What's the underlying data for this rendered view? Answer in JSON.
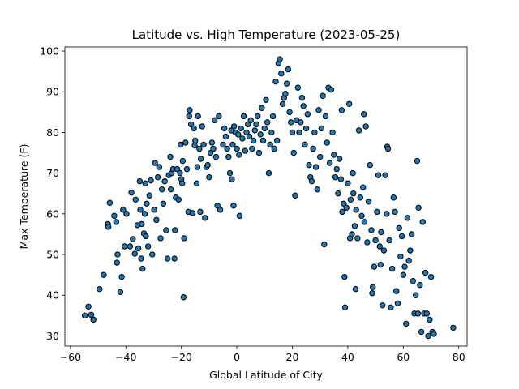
{
  "chart_data": {
    "type": "scatter",
    "title": "Latitude vs. High Temperature (2023-05-25)",
    "xlabel": "Global Latitude of City",
    "ylabel": "Max Temperature (F)",
    "xlim": [
      -62,
      83
    ],
    "ylim": [
      27.5,
      101
    ],
    "xticks": [
      -60,
      -40,
      -20,
      0,
      20,
      40,
      60,
      80
    ],
    "yticks": [
      30,
      40,
      50,
      60,
      70,
      80,
      90,
      100
    ],
    "grid": false,
    "legend": "none",
    "colors": {
      "marker_fill": "#1f77b4",
      "marker_edge": "#000000"
    },
    "points": [
      [
        -54.8,
        35.0
      ],
      [
        -53.5,
        37.2
      ],
      [
        -52.5,
        35.2
      ],
      [
        -51.7,
        34.0
      ],
      [
        -49.5,
        41.5
      ],
      [
        -48.0,
        45.0
      ],
      [
        -46.5,
        57.5
      ],
      [
        -46.3,
        56.8
      ],
      [
        -45.8,
        62.7
      ],
      [
        -44.2,
        59.5
      ],
      [
        -43.5,
        58.0
      ],
      [
        -43.2,
        48.0
      ],
      [
        -43.0,
        50.0
      ],
      [
        -42.0,
        40.8
      ],
      [
        -41.5,
        44.5
      ],
      [
        -41.0,
        61.0
      ],
      [
        -40.5,
        52.0
      ],
      [
        -39.8,
        60.0
      ],
      [
        -38.5,
        52.0
      ],
      [
        -38.0,
        65.2
      ],
      [
        -37.5,
        53.8
      ],
      [
        -36.8,
        50.2
      ],
      [
        -36.5,
        63.5
      ],
      [
        -35.8,
        57.2
      ],
      [
        -35.5,
        51.5
      ],
      [
        -35.0,
        68.0
      ],
      [
        -34.8,
        61.0
      ],
      [
        -34.5,
        49.0
      ],
      [
        -34.3,
        57.5
      ],
      [
        -34.0,
        46.5
      ],
      [
        -33.5,
        55.2
      ],
      [
        -33.2,
        60.0
      ],
      [
        -33.0,
        67.5
      ],
      [
        -32.8,
        54.5
      ],
      [
        -32.5,
        62.5
      ],
      [
        -32.0,
        52.0
      ],
      [
        -31.5,
        64.5
      ],
      [
        -31.0,
        68.2
      ],
      [
        -30.5,
        50.0
      ],
      [
        -29.8,
        61.0
      ],
      [
        -29.5,
        72.5
      ],
      [
        -29.0,
        58.5
      ],
      [
        -28.5,
        69.0
      ],
      [
        -28.0,
        71.5
      ],
      [
        -27.5,
        54.0
      ],
      [
        -27.0,
        66.0
      ],
      [
        -26.5,
        62.5
      ],
      [
        -26.0,
        68.0
      ],
      [
        -25.5,
        56.0
      ],
      [
        -25.0,
        49.0
      ],
      [
        -24.5,
        69.5
      ],
      [
        -24.0,
        74.0
      ],
      [
        -23.8,
        66.0
      ],
      [
        -23.5,
        70.0
      ],
      [
        -23.0,
        71.0
      ],
      [
        -22.5,
        49.0
      ],
      [
        -22.3,
        56.0
      ],
      [
        -22.0,
        64.0
      ],
      [
        -21.5,
        71.0
      ],
      [
        -21.0,
        63.5
      ],
      [
        -20.5,
        70.0
      ],
      [
        -20.3,
        77.0
      ],
      [
        -20.0,
        68.5
      ],
      [
        -19.7,
        67.5
      ],
      [
        -19.5,
        73.0
      ],
      [
        -19.2,
        39.5
      ],
      [
        -19.0,
        54.0
      ],
      [
        -18.5,
        77.5
      ],
      [
        -18.0,
        71.0
      ],
      [
        -17.5,
        60.5
      ],
      [
        -17.2,
        84.0
      ],
      [
        -17.0,
        85.5
      ],
      [
        -16.5,
        82.0
      ],
      [
        -16.0,
        60.2
      ],
      [
        -15.5,
        81.0
      ],
      [
        -15.2,
        76.8
      ],
      [
        -15.0,
        78.0
      ],
      [
        -14.5,
        67.5
      ],
      [
        -14.2,
        71.5
      ],
      [
        -14.0,
        84.0
      ],
      [
        -13.5,
        76.0
      ],
      [
        -13.2,
        60.5
      ],
      [
        -13.0,
        73.5
      ],
      [
        -12.5,
        81.5
      ],
      [
        -12.0,
        77.0
      ],
      [
        -11.5,
        59.0
      ],
      [
        -11.0,
        71.5
      ],
      [
        -10.5,
        72.0
      ],
      [
        -10.0,
        69.0
      ],
      [
        -9.5,
        75.0
      ],
      [
        -9.0,
        77.5
      ],
      [
        -8.5,
        76.0
      ],
      [
        -8.0,
        83.0
      ],
      [
        -7.5,
        74.0
      ],
      [
        -7.0,
        62.0
      ],
      [
        -6.5,
        84.0
      ],
      [
        -6.0,
        61.0
      ],
      [
        -5.0,
        77.0
      ],
      [
        -4.5,
        81.0
      ],
      [
        -4.0,
        79.0
      ],
      [
        -3.5,
        76.0
      ],
      [
        -3.0,
        74.0
      ],
      [
        -2.5,
        70.0
      ],
      [
        -2.0,
        80.5
      ],
      [
        -1.8,
        68.5
      ],
      [
        -1.5,
        77.0
      ],
      [
        -1.2,
        62.0
      ],
      [
        -1.0,
        81.5
      ],
      [
        -0.5,
        80.0
      ],
      [
        0.0,
        76.0
      ],
      [
        0.5,
        79.5
      ],
      [
        0.8,
        74.5
      ],
      [
        1.0,
        59.5
      ],
      [
        1.5,
        81.0
      ],
      [
        2.0,
        78.5
      ],
      [
        2.5,
        84.0
      ],
      [
        3.0,
        75.5
      ],
      [
        3.5,
        80.0
      ],
      [
        4.0,
        82.0
      ],
      [
        4.5,
        79.0
      ],
      [
        5.0,
        83.0
      ],
      [
        5.5,
        76.0
      ],
      [
        6.0,
        78.0
      ],
      [
        6.5,
        80.5
      ],
      [
        7.0,
        82.0
      ],
      [
        7.5,
        84.0
      ],
      [
        8.0,
        75.0
      ],
      [
        8.5,
        79.5
      ],
      [
        9.0,
        86.0
      ],
      [
        9.5,
        78.0
      ],
      [
        10.0,
        81.0
      ],
      [
        10.5,
        88.0
      ],
      [
        11.0,
        82.5
      ],
      [
        11.5,
        70.0
      ],
      [
        12.0,
        77.0
      ],
      [
        12.5,
        80.0
      ],
      [
        13.0,
        84.0
      ],
      [
        13.5,
        76.0
      ],
      [
        14.0,
        92.5
      ],
      [
        14.5,
        78.0
      ],
      [
        15.0,
        97.0
      ],
      [
        15.5,
        98.0
      ],
      [
        16.0,
        94.5
      ],
      [
        16.5,
        87.0
      ],
      [
        17.0,
        88.5
      ],
      [
        17.5,
        89.5
      ],
      [
        18.0,
        92.0
      ],
      [
        18.5,
        95.5
      ],
      [
        19.0,
        85.0
      ],
      [
        19.5,
        82.5
      ],
      [
        20.0,
        80.0
      ],
      [
        20.5,
        75.0
      ],
      [
        21.0,
        64.5
      ],
      [
        21.5,
        83.0
      ],
      [
        22.0,
        91.0
      ],
      [
        22.5,
        80.0
      ],
      [
        23.0,
        82.5
      ],
      [
        23.5,
        88.5
      ],
      [
        24.0,
        86.5
      ],
      [
        24.5,
        77.0
      ],
      [
        25.0,
        81.0
      ],
      [
        25.5,
        84.5
      ],
      [
        26.0,
        72.0
      ],
      [
        26.5,
        69.0
      ],
      [
        27.0,
        68.0
      ],
      [
        27.5,
        76.0
      ],
      [
        28.0,
        80.0
      ],
      [
        28.5,
        71.5
      ],
      [
        29.0,
        66.0
      ],
      [
        29.5,
        85.5
      ],
      [
        30.0,
        74.0
      ],
      [
        30.5,
        81.0
      ],
      [
        31.0,
        89.0
      ],
      [
        31.5,
        52.5
      ],
      [
        32.0,
        84.0
      ],
      [
        32.5,
        77.5
      ],
      [
        33.0,
        91.0
      ],
      [
        33.5,
        72.5
      ],
      [
        34.0,
        90.5
      ],
      [
        34.5,
        80.0
      ],
      [
        35.0,
        74.5
      ],
      [
        35.5,
        69.0
      ],
      [
        36.0,
        71.0
      ],
      [
        36.5,
        65.0
      ],
      [
        37.0,
        73.5
      ],
      [
        37.5,
        68.5
      ],
      [
        37.8,
        85.5
      ],
      [
        38.0,
        60.5
      ],
      [
        38.5,
        62.5
      ],
      [
        38.8,
        44.5
      ],
      [
        39.0,
        37.0
      ],
      [
        39.5,
        61.5
      ],
      [
        40.0,
        67.5
      ],
      [
        40.5,
        87.0
      ],
      [
        40.8,
        54.0
      ],
      [
        41.0,
        63.5
      ],
      [
        41.5,
        55.0
      ],
      [
        41.8,
        70.0
      ],
      [
        42.0,
        65.0
      ],
      [
        42.5,
        57.0
      ],
      [
        42.8,
        41.5
      ],
      [
        43.0,
        61.0
      ],
      [
        43.5,
        54.0
      ],
      [
        44.0,
        80.5
      ],
      [
        44.5,
        64.0
      ],
      [
        45.0,
        59.5
      ],
      [
        45.5,
        66.5
      ],
      [
        45.8,
        84.5
      ],
      [
        46.0,
        58.0
      ],
      [
        46.5,
        81.5
      ],
      [
        47.0,
        53.0
      ],
      [
        47.5,
        63.0
      ],
      [
        48.0,
        72.0
      ],
      [
        48.5,
        56.0
      ],
      [
        48.8,
        40.5
      ],
      [
        49.0,
        42.0
      ],
      [
        49.5,
        47.0
      ],
      [
        50.0,
        53.5
      ],
      [
        50.5,
        60.5
      ],
      [
        51.0,
        69.5
      ],
      [
        51.5,
        52.0
      ],
      [
        51.8,
        47.5
      ],
      [
        52.0,
        55.5
      ],
      [
        52.5,
        37.5
      ],
      [
        53.0,
        51.0
      ],
      [
        53.5,
        69.5
      ],
      [
        54.0,
        60.0
      ],
      [
        54.2,
        76.5
      ],
      [
        54.5,
        76.0
      ],
      [
        55.0,
        53.5
      ],
      [
        55.5,
        37.0
      ],
      [
        56.0,
        46.5
      ],
      [
        56.5,
        64.0
      ],
      [
        57.0,
        60.5
      ],
      [
        57.5,
        41.0
      ],
      [
        58.0,
        38.0
      ],
      [
        58.5,
        56.5
      ],
      [
        59.0,
        49.5
      ],
      [
        59.5,
        54.5
      ],
      [
        60.0,
        45.0
      ],
      [
        60.5,
        47.0
      ],
      [
        61.0,
        33.0
      ],
      [
        61.5,
        59.0
      ],
      [
        62.0,
        48.5
      ],
      [
        62.5,
        51.0
      ],
      [
        63.0,
        55.0
      ],
      [
        63.5,
        43.5
      ],
      [
        64.0,
        35.5
      ],
      [
        64.5,
        40.0
      ],
      [
        65.0,
        73.0
      ],
      [
        65.3,
        35.5
      ],
      [
        65.5,
        61.5
      ],
      [
        66.0,
        42.5
      ],
      [
        66.5,
        31.0
      ],
      [
        67.0,
        58.0
      ],
      [
        67.5,
        35.5
      ],
      [
        68.0,
        45.5
      ],
      [
        68.5,
        35.5
      ],
      [
        69.0,
        30.0
      ],
      [
        69.5,
        34.0
      ],
      [
        70.0,
        44.5
      ],
      [
        70.5,
        31.0
      ],
      [
        71.0,
        30.5
      ],
      [
        78.0,
        32.0
      ]
    ]
  }
}
